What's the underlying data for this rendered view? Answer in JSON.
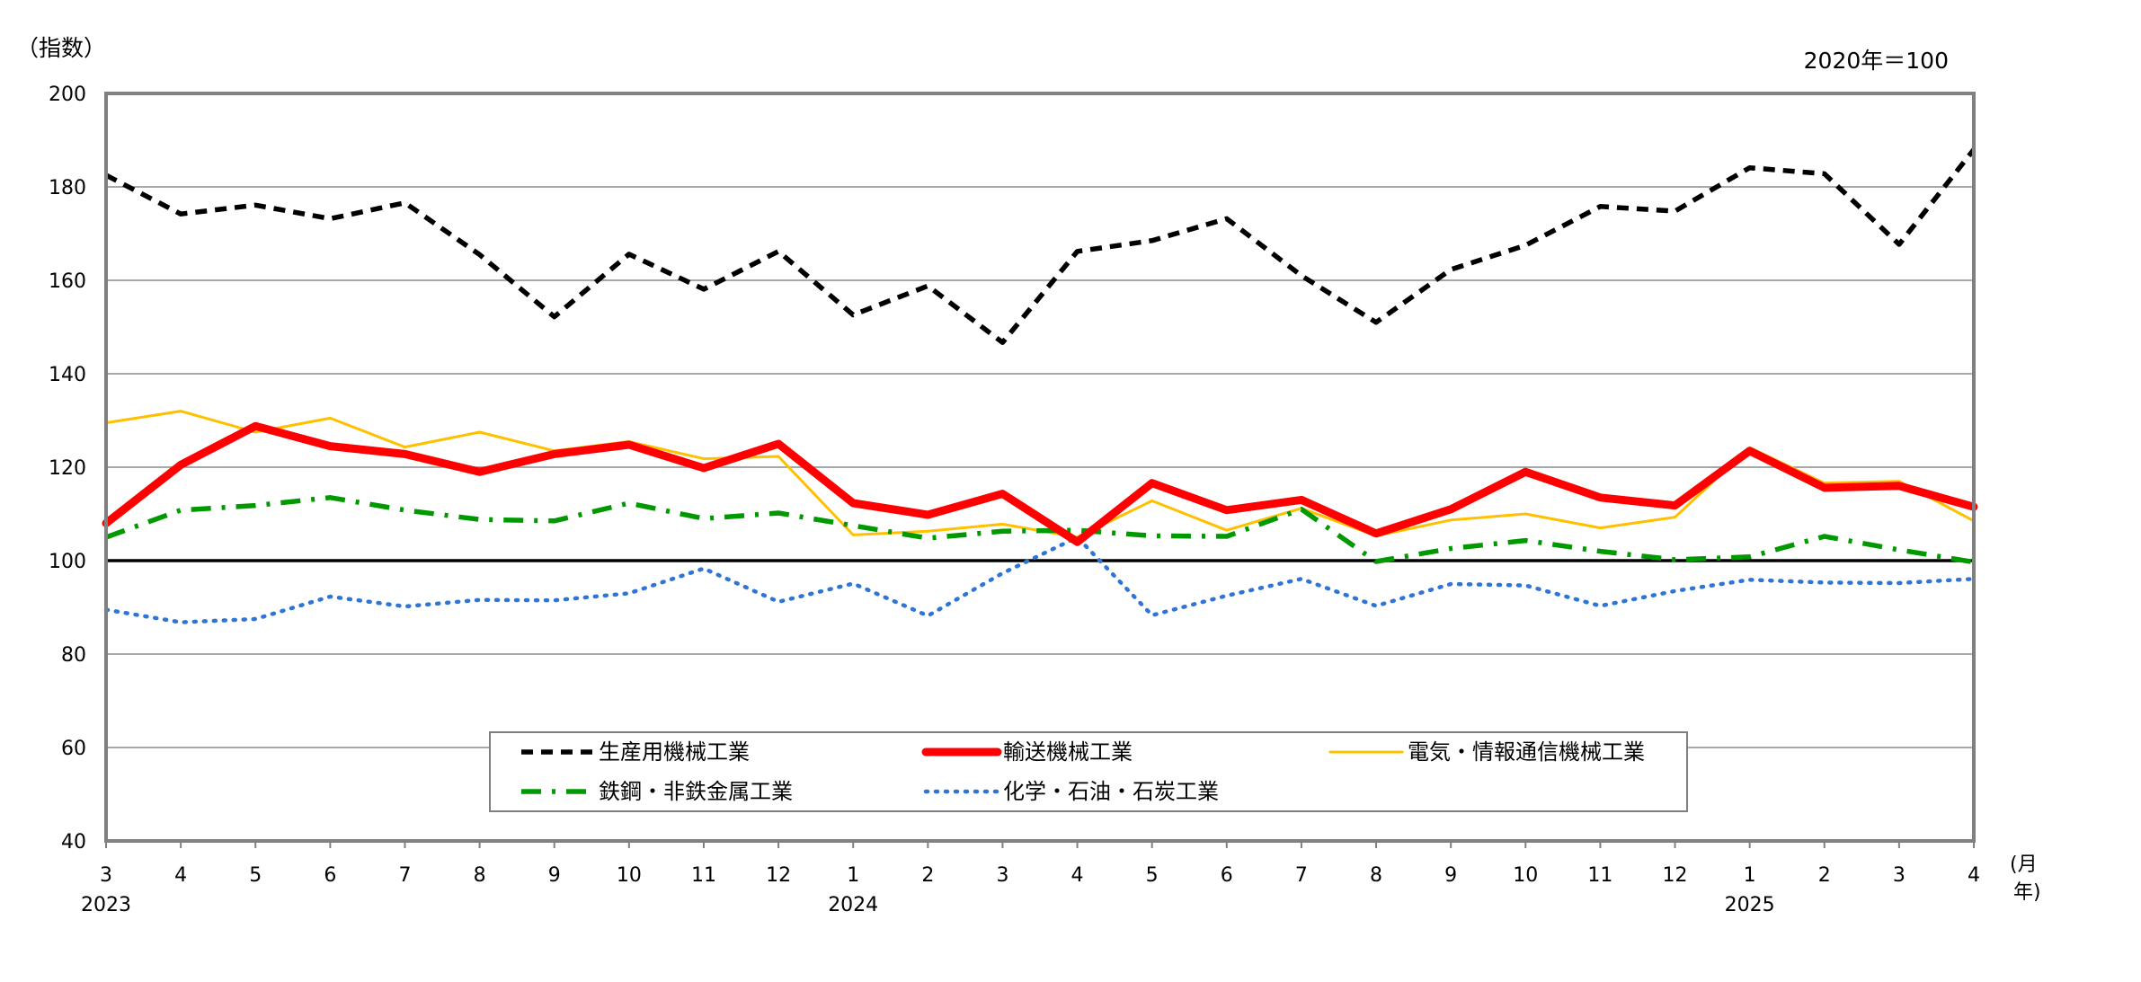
{
  "chart_data": {
    "type": "line",
    "unit_label": "（指数）",
    "base_note": "2020年＝100",
    "x_axis_suffix_month": "(月",
    "x_axis_suffix_year": "年)",
    "categories": [
      "3",
      "4",
      "5",
      "6",
      "7",
      "8",
      "9",
      "10",
      "11",
      "12",
      "1",
      "2",
      "3",
      "4",
      "5",
      "6",
      "7",
      "8",
      "9",
      "10",
      "11",
      "12",
      "1",
      "2",
      "3",
      "4"
    ],
    "year_labels": [
      {
        "index": 0,
        "label": "2023"
      },
      {
        "index": 10,
        "label": "2024"
      },
      {
        "index": 22,
        "label": "2025"
      }
    ],
    "ylim": [
      40,
      200
    ],
    "yticks": [
      "40",
      "60",
      "80",
      "100",
      "120",
      "140",
      "160",
      "180",
      "200"
    ],
    "reference_line": 100,
    "grid": true,
    "legend_position": "bottom-center",
    "series": [
      {
        "name": "生産用機械工業",
        "color": "#000000",
        "style": "dash",
        "values": [
          182.5,
          174.2,
          176.1,
          173.2,
          176.6,
          165.5,
          152.2,
          165.6,
          158.1,
          166.2,
          152.6,
          158.8,
          146.7,
          166.2,
          168.5,
          173.2,
          161.0,
          151.0,
          162.3,
          167.5,
          175.8,
          174.8,
          184.1,
          182.8,
          167.7,
          188.0
        ]
      },
      {
        "name": "輸送機械工業",
        "color": "#ff0000",
        "style": "solid-thick",
        "values": [
          108.0,
          120.5,
          128.8,
          124.5,
          122.8,
          119.0,
          122.8,
          124.8,
          119.8,
          125.0,
          112.3,
          109.8,
          114.3,
          104.0,
          116.6,
          110.8,
          113.0,
          105.8,
          111.0,
          119.0,
          113.5,
          111.8,
          123.5,
          115.6,
          116.0,
          111.5
        ]
      },
      {
        "name": "電気・情報通信機械工業",
        "color": "#ffc000",
        "style": "solid",
        "values": [
          129.5,
          132.0,
          127.5,
          130.5,
          124.3,
          127.5,
          123.5,
          125.5,
          121.8,
          122.3,
          105.5,
          106.3,
          107.8,
          105.0,
          112.8,
          106.5,
          111.2,
          105.3,
          108.7,
          110.0,
          107.0,
          109.3,
          124.2,
          116.6,
          117.0,
          108.5
        ]
      },
      {
        "name": "鉄鋼・非鉄金属工業",
        "color": "#009900",
        "style": "dashdot",
        "values": [
          105.0,
          110.8,
          111.8,
          113.5,
          110.8,
          108.8,
          108.5,
          112.3,
          109.0,
          110.2,
          107.5,
          104.8,
          106.3,
          106.5,
          105.3,
          105.2,
          111.0,
          99.8,
          102.6,
          104.3,
          102.0,
          100.2,
          100.8,
          105.2,
          102.3,
          99.7
        ]
      },
      {
        "name": "化学・石油・石炭工業",
        "color": "#2e75d6",
        "style": "dot",
        "values": [
          89.5,
          86.8,
          87.5,
          92.3,
          90.2,
          91.6,
          91.5,
          93.0,
          98.3,
          91.2,
          95.1,
          88.2,
          97.3,
          105.0,
          88.3,
          92.5,
          96.1,
          90.3,
          95.0,
          94.7,
          90.3,
          93.5,
          95.9,
          95.3,
          95.2,
          96.1
        ]
      }
    ]
  }
}
